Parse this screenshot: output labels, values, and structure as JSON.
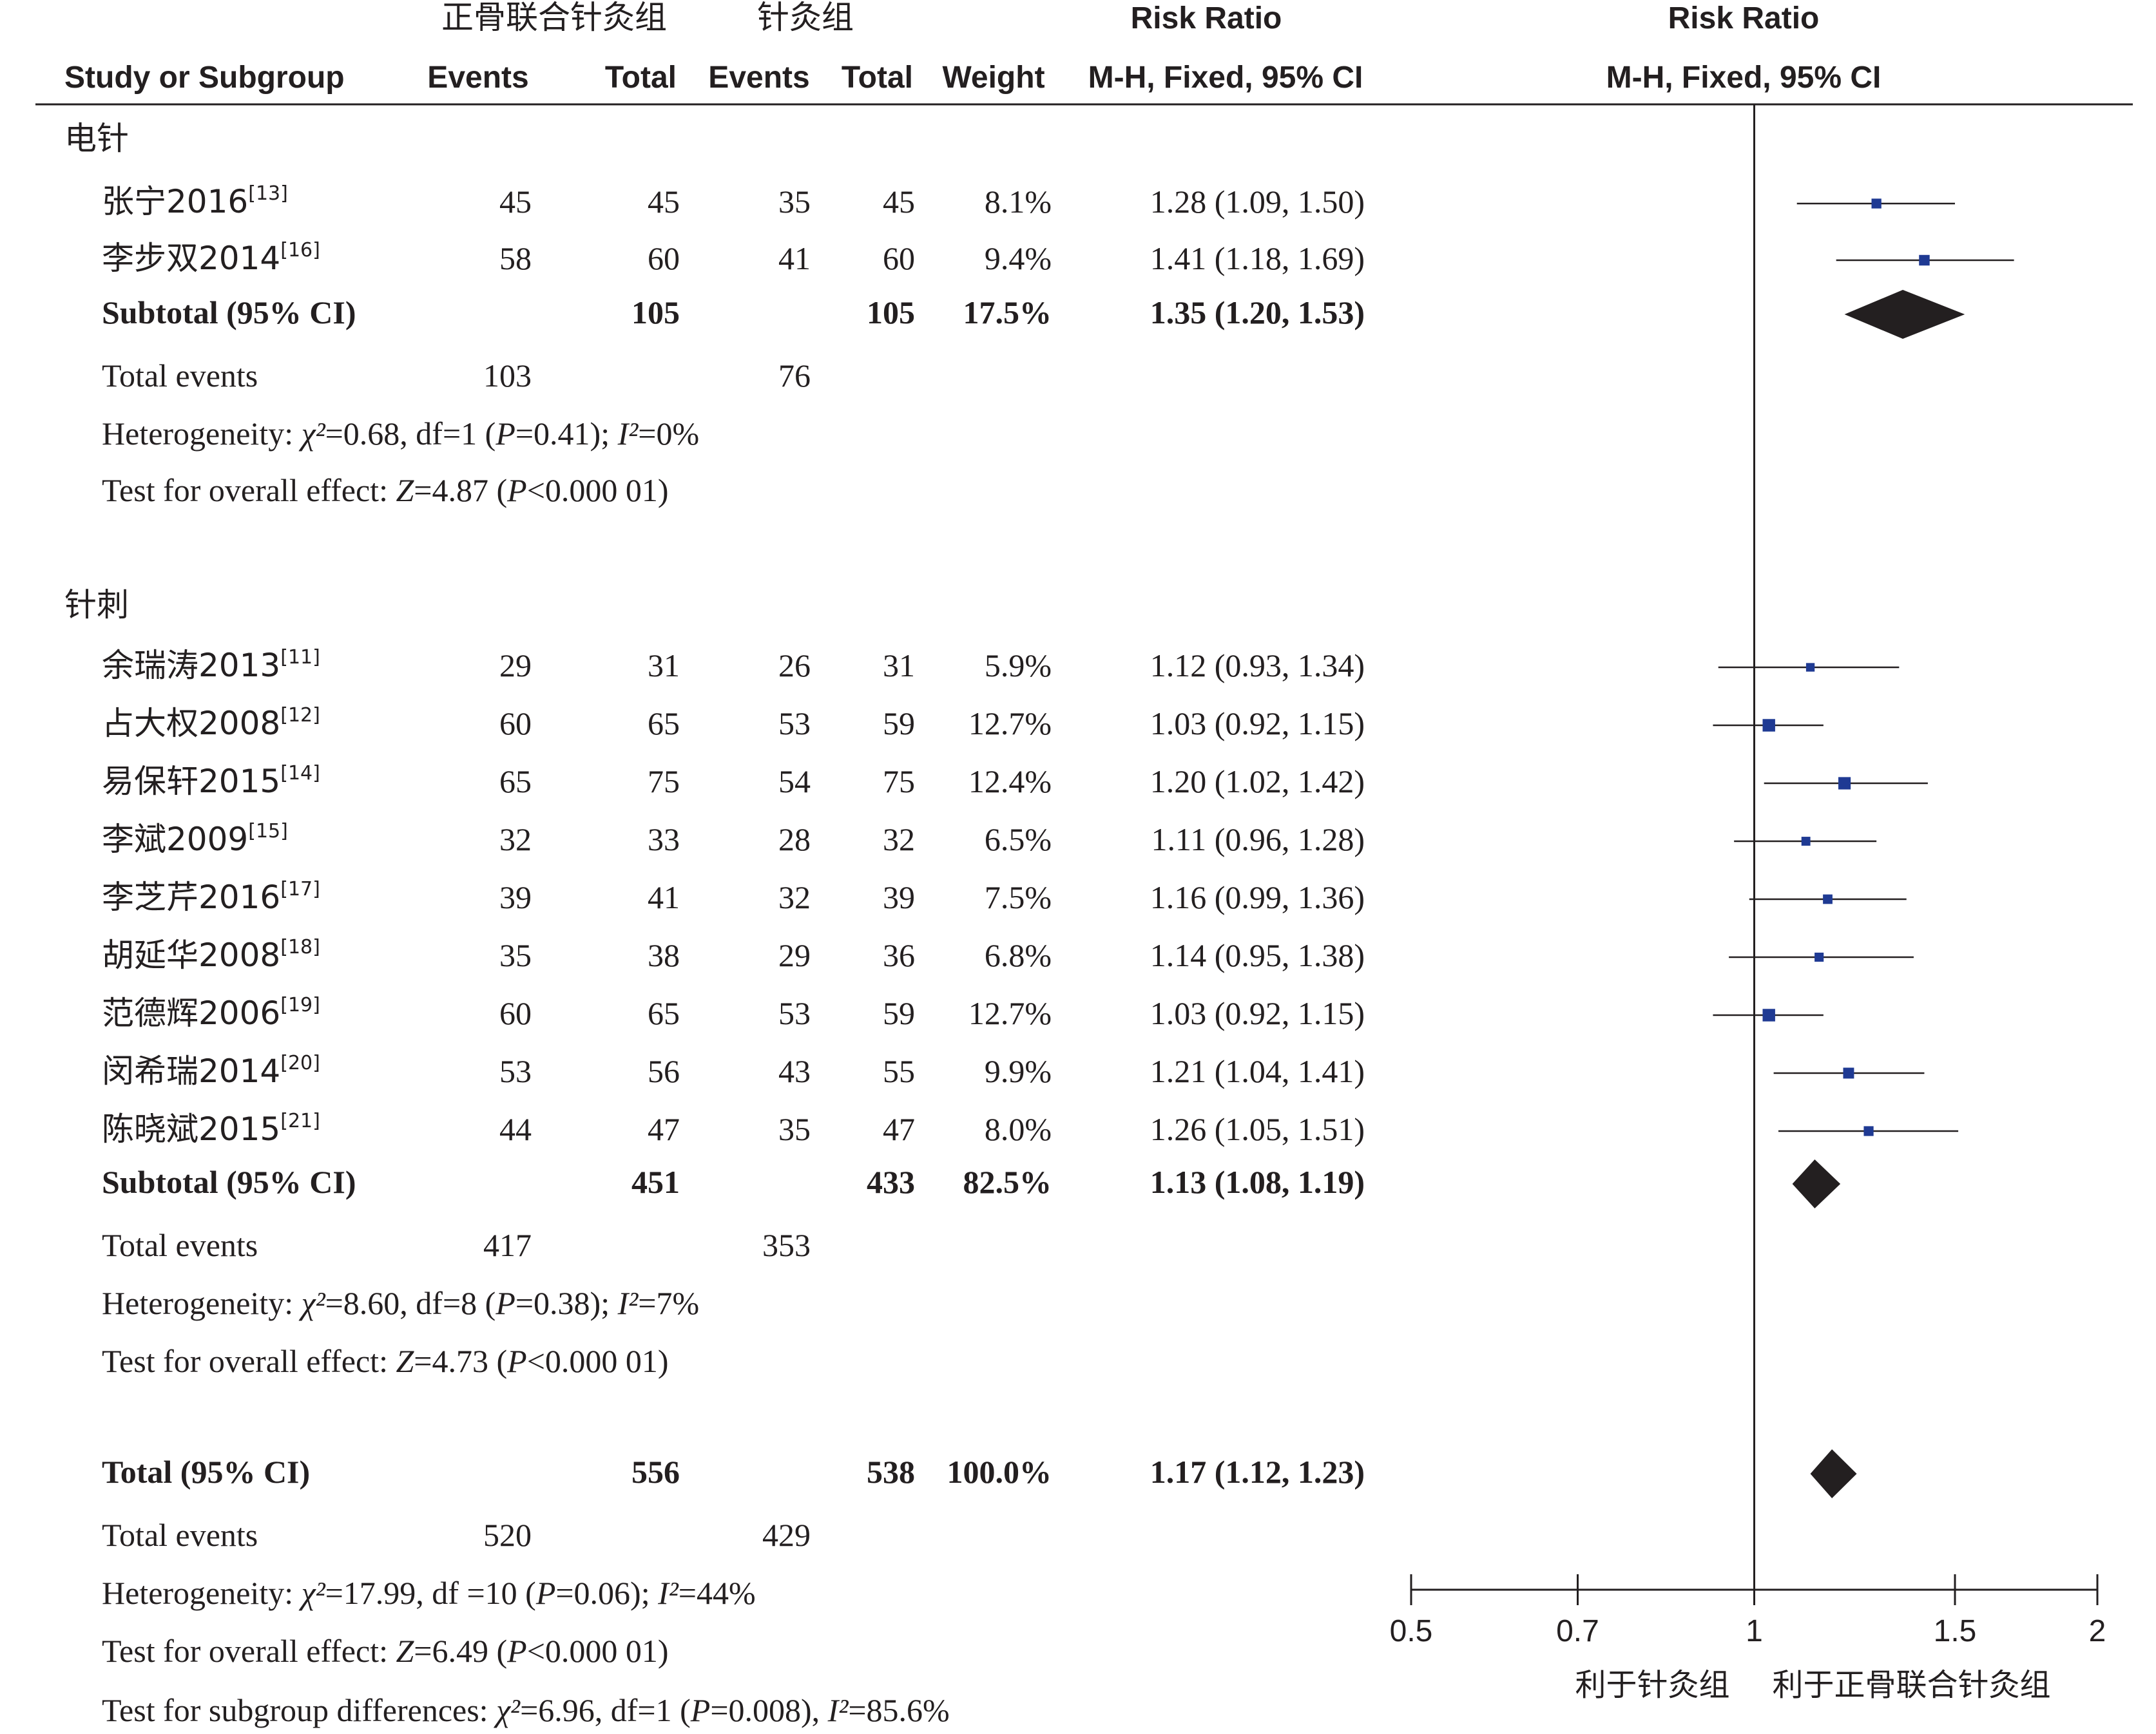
{
  "header": {
    "exp_group": "正骨联合针灸组",
    "ctrl_group": "针灸组",
    "risk_ratio": "Risk Ratio",
    "study_or_subgroup": "Study or Subgroup",
    "events": "Events",
    "total": "Total",
    "weight": "Weight",
    "method": "M-H, Fixed, 95% CI"
  },
  "subgroups": [
    {
      "name": "电针",
      "studies": [
        {
          "study": "张宁2016",
          "ref": "[13]",
          "e1": "45",
          "n1": "45",
          "e2": "35",
          "n2": "45",
          "weight": "8.1%",
          "ci": "1.28 (1.09, 1.50)"
        },
        {
          "study": "李步双2014",
          "ref": "[16]",
          "e1": "58",
          "n1": "60",
          "e2": "41",
          "n2": "60",
          "weight": "9.4%",
          "ci": "1.41 (1.18, 1.69)"
        }
      ],
      "subtotal": {
        "label": "Subtotal (95% CI)",
        "n1": "105",
        "n2": "105",
        "weight": "17.5%",
        "ci": "1.35 (1.20, 1.53)"
      },
      "total_events": {
        "label": "Total events",
        "e1": "103",
        "e2": "76"
      },
      "heterogeneity": "Heterogeneity: χ²=0.68, df=1 (P=0.41); I²=0%",
      "overall_effect": "Test for overall effect: Z=4.87 (P<0.000 01)"
    },
    {
      "name": "针刺",
      "studies": [
        {
          "study": "余瑞涛2013",
          "ref": "[11]",
          "e1": "29",
          "n1": "31",
          "e2": "26",
          "n2": "31",
          "weight": "5.9%",
          "ci": "1.12 (0.93, 1.34)"
        },
        {
          "study": "占大权2008",
          "ref": "[12]",
          "e1": "60",
          "n1": "65",
          "e2": "53",
          "n2": "59",
          "weight": "12.7%",
          "ci": "1.03 (0.92, 1.15)"
        },
        {
          "study": "易保轩2015",
          "ref": "[14]",
          "e1": "65",
          "n1": "75",
          "e2": "54",
          "n2": "75",
          "weight": "12.4%",
          "ci": "1.20 (1.02, 1.42)"
        },
        {
          "study": "李斌2009",
          "ref": "[15]",
          "e1": "32",
          "n1": "33",
          "e2": "28",
          "n2": "32",
          "weight": "6.5%",
          "ci": "1.11 (0.96, 1.28)"
        },
        {
          "study": "李芝芹2016",
          "ref": "[17]",
          "e1": "39",
          "n1": "41",
          "e2": "32",
          "n2": "39",
          "weight": "7.5%",
          "ci": "1.16 (0.99, 1.36)"
        },
        {
          "study": "胡延华2008",
          "ref": "[18]",
          "e1": "35",
          "n1": "38",
          "e2": "29",
          "n2": "36",
          "weight": "6.8%",
          "ci": "1.14 (0.95, 1.38)"
        },
        {
          "study": "范德辉2006",
          "ref": "[19]",
          "e1": "60",
          "n1": "65",
          "e2": "53",
          "n2": "59",
          "weight": "12.7%",
          "ci": "1.03 (0.92, 1.15)"
        },
        {
          "study": "闵希瑞2014",
          "ref": "[20]",
          "e1": "53",
          "n1": "56",
          "e2": "43",
          "n2": "55",
          "weight": "9.9%",
          "ci": "1.21 (1.04, 1.41)"
        },
        {
          "study": "陈晓斌2015",
          "ref": "[21]",
          "e1": "44",
          "n1": "47",
          "e2": "35",
          "n2": "47",
          "weight": "8.0%",
          "ci": "1.26 (1.05, 1.51)"
        }
      ],
      "subtotal": {
        "label": "Subtotal (95% CI)",
        "n1": "451",
        "n2": "433",
        "weight": "82.5%",
        "ci": "1.13 (1.08, 1.19)"
      },
      "total_events": {
        "label": "Total events",
        "e1": "417",
        "e2": "353"
      },
      "heterogeneity": "Heterogeneity: χ²=8.60, df=8 (P=0.38); I²=7%",
      "overall_effect": "Test for overall effect: Z=4.73 (P<0.000 01)"
    }
  ],
  "overall": {
    "label": "Total (95% CI)",
    "n1": "556",
    "n2": "538",
    "weight": "100.0%",
    "ci": "1.17 (1.12, 1.23)",
    "total_events": {
      "label": "Total events",
      "e1": "520",
      "e2": "429"
    },
    "heterogeneity": "Heterogeneity: χ²=17.99, df =10 (P=0.06); I²=44%",
    "overall_effect": "Test for overall effect: Z=6.49 (P<0.000 01)",
    "subgroup_diff": "Test for subgroup differences: χ²=6.96, df=1 (P=0.008), I²=85.6%"
  },
  "axis": {
    "ticks": [
      0.5,
      0.7,
      1,
      1.5,
      2
    ],
    "favours_left": "利于针灸组",
    "favours_right": "利于正骨联合针灸组"
  },
  "colors": {
    "study_marker": "#1f3a93",
    "diamond": "#231f20",
    "text": "#231f20"
  },
  "chart_data": {
    "type": "scatter",
    "title": "",
    "xlabel": "",
    "ylabel": "",
    "x_scale": "log",
    "xlim": [
      0.5,
      2
    ],
    "reference_line": 1,
    "series": [
      {
        "name": "电针",
        "points": [
          {
            "study": "张宁2016",
            "rr": 1.28,
            "lower": 1.09,
            "upper": 1.5,
            "weight": 8.1
          },
          {
            "study": "李步双2014",
            "rr": 1.41,
            "lower": 1.18,
            "upper": 1.69,
            "weight": 9.4
          }
        ],
        "subtotal": {
          "rr": 1.35,
          "lower": 1.2,
          "upper": 1.53,
          "weight": 17.5
        }
      },
      {
        "name": "针刺",
        "points": [
          {
            "study": "余瑞涛2013",
            "rr": 1.12,
            "lower": 0.93,
            "upper": 1.34,
            "weight": 5.9
          },
          {
            "study": "占大权2008",
            "rr": 1.03,
            "lower": 0.92,
            "upper": 1.15,
            "weight": 12.7
          },
          {
            "study": "易保轩2015",
            "rr": 1.2,
            "lower": 1.02,
            "upper": 1.42,
            "weight": 12.4
          },
          {
            "study": "李斌2009",
            "rr": 1.11,
            "lower": 0.96,
            "upper": 1.28,
            "weight": 6.5
          },
          {
            "study": "李芝芹2016",
            "rr": 1.16,
            "lower": 0.99,
            "upper": 1.36,
            "weight": 7.5
          },
          {
            "study": "胡延华2008",
            "rr": 1.14,
            "lower": 0.95,
            "upper": 1.38,
            "weight": 6.8
          },
          {
            "study": "范德辉2006",
            "rr": 1.03,
            "lower": 0.92,
            "upper": 1.15,
            "weight": 12.7
          },
          {
            "study": "闵希瑞2014",
            "rr": 1.21,
            "lower": 1.04,
            "upper": 1.41,
            "weight": 9.9
          },
          {
            "study": "陈晓斌2015",
            "rr": 1.26,
            "lower": 1.05,
            "upper": 1.51,
            "weight": 8.0
          }
        ],
        "subtotal": {
          "rr": 1.13,
          "lower": 1.08,
          "upper": 1.19,
          "weight": 82.5
        }
      }
    ],
    "overall": {
      "rr": 1.17,
      "lower": 1.12,
      "upper": 1.23,
      "weight": 100.0
    }
  }
}
